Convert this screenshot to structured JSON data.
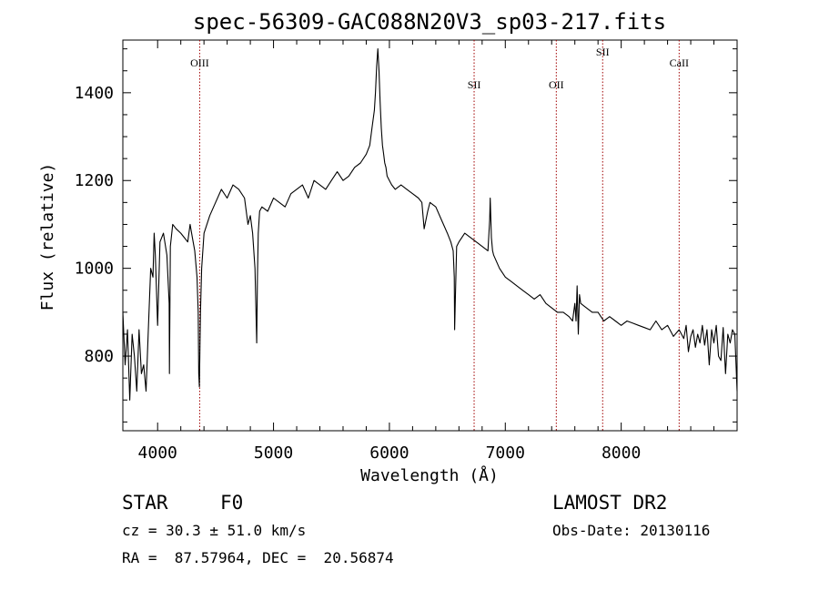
{
  "chart_data": {
    "type": "line",
    "title": "spec-56309-GAC088N20V3_sp03-217.fits",
    "xlabel": "Wavelength (Å)",
    "ylabel": "Flux (relative)",
    "xlim": [
      3700,
      9000
    ],
    "ylim": [
      630,
      1520
    ],
    "xticks": [
      4000,
      5000,
      6000,
      7000,
      8000
    ],
    "xtick_labels": [
      "4000",
      "5000",
      "6000",
      "7000",
      "8000"
    ],
    "yticks": [
      800,
      1000,
      1200,
      1400
    ],
    "ytick_labels": [
      "800",
      "1000",
      "1200",
      "1400"
    ],
    "grid": false,
    "color": "#000000",
    "line_markers": [
      {
        "label": "OIII",
        "x": 4363,
        "label_y": 1460
      },
      {
        "label": "SII",
        "x": 6731,
        "label_y": 1410
      },
      {
        "label": "OII",
        "x": 7440,
        "label_y": 1410
      },
      {
        "label": "SII",
        "x": 7840,
        "label_y": 1485
      },
      {
        "label": "CaII",
        "x": 8500,
        "label_y": 1460
      }
    ],
    "marker_color": "#a00000",
    "series": [
      {
        "x": [
          3700,
          3720,
          3740,
          3760,
          3780,
          3800,
          3820,
          3840,
          3860,
          3880,
          3900,
          3920,
          3940,
          3960,
          3970,
          3980,
          4000,
          4020,
          4050,
          4080,
          4100,
          4102,
          4110,
          4130,
          4160,
          4200,
          4230,
          4260,
          4280,
          4300,
          4320,
          4340,
          4350,
          4355,
          4360,
          4370,
          4380,
          4400,
          4450,
          4500,
          4550,
          4600,
          4650,
          4700,
          4750,
          4780,
          4800,
          4820,
          4840,
          4855,
          4861,
          4868,
          4880,
          4900,
          4950,
          5000,
          5050,
          5100,
          5150,
          5200,
          5250,
          5300,
          5350,
          5400,
          5450,
          5500,
          5550,
          5600,
          5650,
          5700,
          5750,
          5800,
          5830,
          5850,
          5870,
          5880,
          5890,
          5900,
          5910,
          5920,
          5930,
          5940,
          5950,
          5960,
          5970,
          5980,
          6000,
          6020,
          6050,
          6100,
          6150,
          6200,
          6250,
          6280,
          6300,
          6330,
          6350,
          6400,
          6450,
          6500,
          6530,
          6550,
          6560,
          6563,
          6570,
          6580,
          6600,
          6650,
          6700,
          6750,
          6800,
          6850,
          6865,
          6870,
          6880,
          6890,
          6900,
          6950,
          7000,
          7050,
          7100,
          7150,
          7200,
          7250,
          7300,
          7350,
          7400,
          7450,
          7500,
          7550,
          7580,
          7600,
          7610,
          7620,
          7630,
          7640,
          7650,
          7700,
          7750,
          7800,
          7850,
          7900,
          7950,
          8000,
          8050,
          8100,
          8150,
          8200,
          8250,
          8300,
          8350,
          8400,
          8450,
          8500,
          8520,
          8540,
          8560,
          8580,
          8600,
          8620,
          8640,
          8660,
          8680,
          8700,
          8720,
          8740,
          8760,
          8780,
          8800,
          8820,
          8840,
          8860,
          8880,
          8900,
          8920,
          8940,
          8960,
          8980,
          9000
        ],
        "y": [
          900,
          780,
          860,
          700,
          850,
          800,
          720,
          860,
          760,
          780,
          720,
          860,
          1000,
          980,
          1080,
          1030,
          870,
          1060,
          1080,
          1030,
          920,
          760,
          1050,
          1100,
          1090,
          1080,
          1070,
          1060,
          1100,
          1070,
          1040,
          980,
          900,
          760,
          730,
          900,
          1000,
          1080,
          1120,
          1150,
          1180,
          1160,
          1190,
          1180,
          1160,
          1100,
          1120,
          1080,
          1000,
          830,
          980,
          1080,
          1130,
          1140,
          1130,
          1160,
          1150,
          1140,
          1170,
          1180,
          1190,
          1160,
          1200,
          1190,
          1180,
          1200,
          1220,
          1200,
          1210,
          1230,
          1240,
          1260,
          1280,
          1320,
          1360,
          1400,
          1460,
          1500,
          1450,
          1380,
          1320,
          1280,
          1260,
          1240,
          1230,
          1210,
          1200,
          1190,
          1180,
          1190,
          1180,
          1170,
          1160,
          1150,
          1090,
          1130,
          1150,
          1140,
          1110,
          1080,
          1060,
          1040,
          980,
          860,
          940,
          1050,
          1060,
          1080,
          1070,
          1060,
          1050,
          1040,
          1110,
          1160,
          1070,
          1040,
          1030,
          1000,
          980,
          970,
          960,
          950,
          940,
          930,
          940,
          920,
          910,
          900,
          900,
          890,
          880,
          920,
          880,
          960,
          850,
          940,
          920,
          910,
          900,
          900,
          880,
          890,
          880,
          870,
          880,
          875,
          870,
          865,
          860,
          880,
          860,
          870,
          845,
          860,
          850,
          840,
          870,
          810,
          845,
          860,
          820,
          850,
          830,
          870,
          825,
          860,
          780,
          860,
          830,
          870,
          800,
          790,
          865,
          760,
          850,
          830,
          860,
          850,
          720
        ]
      }
    ]
  },
  "info": {
    "object_class": "STAR",
    "subclass": "F0",
    "survey": "LAMOST DR2",
    "cz": "cz = 30.3 ± 51.0 km/s",
    "obs_date": "Obs-Date: 20130116",
    "coords": "RA =  87.57964, DEC =  20.56874"
  }
}
